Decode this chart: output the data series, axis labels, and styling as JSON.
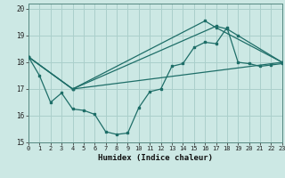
{
  "xlabel": "Humidex (Indice chaleur)",
  "background_color": "#cce8e4",
  "grid_color": "#aacfcb",
  "line_color": "#1e6e68",
  "xlim": [
    0,
    23
  ],
  "ylim": [
    15,
    20.2
  ],
  "xticks": [
    0,
    1,
    2,
    3,
    4,
    5,
    6,
    7,
    8,
    9,
    10,
    11,
    12,
    13,
    14,
    15,
    16,
    17,
    18,
    19,
    20,
    21,
    22,
    23
  ],
  "yticks": [
    15,
    16,
    17,
    18,
    19,
    20
  ],
  "series": [
    {
      "x": [
        0,
        1,
        2,
        3,
        4,
        5,
        6,
        7,
        8,
        9,
        10,
        11,
        12,
        13,
        14,
        15,
        16,
        17,
        18,
        19,
        20,
        21,
        22,
        23
      ],
      "y": [
        18.2,
        17.5,
        16.5,
        16.85,
        16.25,
        16.2,
        16.05,
        15.4,
        15.3,
        15.35,
        16.3,
        16.9,
        17.0,
        17.85,
        17.95,
        18.55,
        18.75,
        18.7,
        19.3,
        18.0,
        17.95,
        17.85,
        17.9,
        17.95
      ]
    },
    {
      "x": [
        0,
        4,
        16,
        17,
        23
      ],
      "y": [
        18.2,
        17.0,
        19.55,
        19.3,
        18.0
      ]
    },
    {
      "x": [
        0,
        4,
        17,
        18,
        19,
        23
      ],
      "y": [
        18.2,
        17.0,
        19.35,
        19.25,
        19.0,
        18.0
      ]
    },
    {
      "x": [
        0,
        4,
        23
      ],
      "y": [
        18.2,
        17.0,
        18.0
      ]
    }
  ]
}
